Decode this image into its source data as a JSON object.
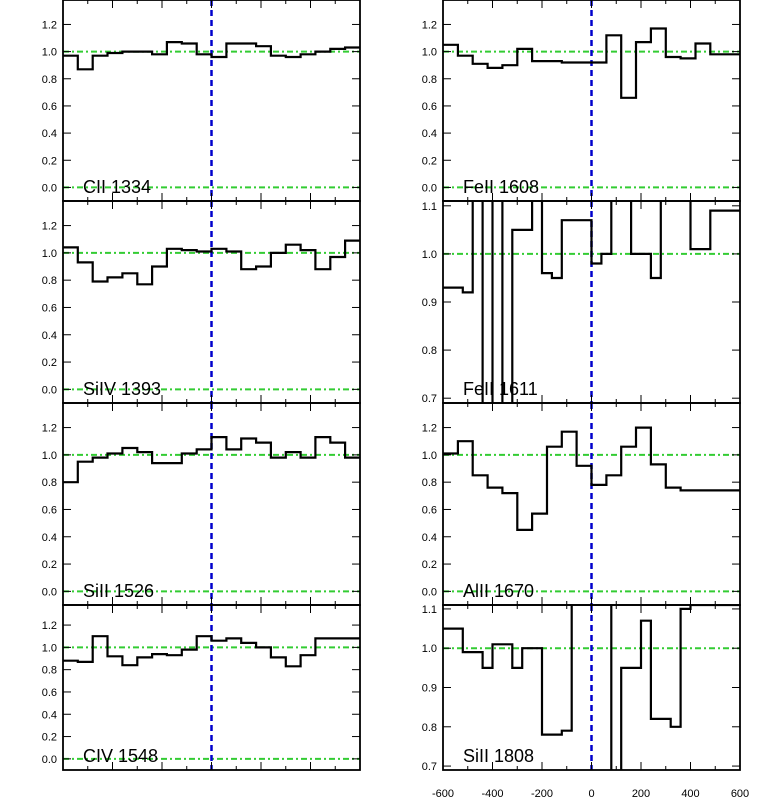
{
  "chart_data": [
    {
      "type": "line",
      "step": true,
      "label": "CII 1334",
      "xlim": [
        -600,
        600
      ],
      "ylim": [
        -0.1,
        1.38
      ],
      "yticks": [
        "0.0",
        "0.2",
        "0.4",
        "0.6",
        "0.8",
        "1.0",
        "1.2"
      ],
      "ytick_values": [
        0.0,
        0.2,
        0.4,
        0.6,
        0.8,
        1.0,
        1.2
      ],
      "xticks": [],
      "reference_lines": [
        0.0,
        1.0
      ],
      "vline": 0,
      "x": [
        -600,
        -540,
        -480,
        -420,
        -360,
        -300,
        -240,
        -180,
        -120,
        -60,
        0,
        60,
        120,
        180,
        240,
        300,
        360,
        420,
        480,
        540,
        600
      ],
      "values": [
        0.97,
        0.87,
        0.97,
        0.99,
        1.0,
        1.0,
        0.98,
        1.07,
        1.06,
        0.98,
        0.96,
        1.06,
        1.06,
        1.04,
        0.97,
        0.96,
        0.98,
        1.0,
        1.02,
        1.03,
        0.9
      ]
    },
    {
      "type": "line",
      "step": true,
      "label": "FeII 1608",
      "xlim": [
        -600,
        600
      ],
      "ylim": [
        -0.1,
        1.38
      ],
      "yticks": [
        "0.0",
        "0.2",
        "0.4",
        "0.6",
        "0.8",
        "1.0",
        "1.2"
      ],
      "ytick_values": [
        0.0,
        0.2,
        0.4,
        0.6,
        0.8,
        1.0,
        1.2
      ],
      "xticks": [],
      "reference_lines": [
        0.0,
        1.0
      ],
      "vline": 0,
      "x": [
        -600,
        -540,
        -480,
        -420,
        -360,
        -300,
        -240,
        -180,
        -120,
        -60,
        0,
        60,
        120,
        180,
        240,
        300,
        360,
        420,
        480,
        540,
        600
      ],
      "values": [
        1.05,
        0.97,
        0.91,
        0.88,
        0.9,
        1.02,
        0.93,
        0.93,
        0.92,
        0.92,
        0.92,
        1.12,
        0.66,
        1.07,
        1.17,
        0.96,
        0.95,
        1.06,
        0.98,
        0.98,
        0.98
      ]
    },
    {
      "type": "line",
      "step": true,
      "label": "SiIV 1393",
      "xlim": [
        -600,
        600
      ],
      "ylim": [
        -0.1,
        1.38
      ],
      "yticks": [
        "0.0",
        "0.2",
        "0.4",
        "0.6",
        "0.8",
        "1.0",
        "1.2"
      ],
      "ytick_values": [
        0.0,
        0.2,
        0.4,
        0.6,
        0.8,
        1.0,
        1.2
      ],
      "xticks": [],
      "reference_lines": [
        0.0,
        1.0
      ],
      "vline": 0,
      "x": [
        -600,
        -540,
        -480,
        -420,
        -360,
        -300,
        -240,
        -180,
        -120,
        -60,
        0,
        60,
        120,
        180,
        240,
        300,
        360,
        420,
        480,
        540,
        600
      ],
      "values": [
        1.04,
        0.93,
        0.79,
        0.82,
        0.85,
        0.77,
        0.9,
        1.03,
        1.02,
        1.01,
        1.03,
        1.01,
        0.88,
        0.9,
        1.0,
        1.06,
        1.02,
        0.88,
        0.97,
        1.09,
        1.05
      ]
    },
    {
      "type": "line",
      "step": true,
      "label": "FeII 1611",
      "xlim": [
        -600,
        600
      ],
      "ylim": [
        0.69,
        1.11
      ],
      "yticks": [
        "0.7",
        "0.8",
        "0.9",
        "1.0",
        "1.1"
      ],
      "ytick_values": [
        0.7,
        0.8,
        0.9,
        1.0,
        1.1
      ],
      "xticks": [],
      "reference_lines": [
        1.0
      ],
      "vline": 0,
      "x": [
        -600,
        -560,
        -520,
        -480,
        -440,
        -400,
        -360,
        -320,
        -280,
        -240,
        -200,
        -160,
        -120,
        -80,
        -40,
        0,
        40,
        80,
        120,
        160,
        200,
        240,
        280,
        320,
        360,
        400,
        440,
        480,
        520,
        560,
        600
      ],
      "values": [
        0.93,
        0.93,
        0.92,
        1.15,
        0.5,
        1.15,
        0.5,
        1.05,
        1.05,
        1.15,
        0.96,
        0.95,
        1.07,
        1.07,
        1.07,
        0.98,
        1.0,
        1.15,
        1.15,
        1.0,
        1.0,
        0.95,
        1.15,
        1.15,
        1.15,
        1.01,
        1.01,
        1.09,
        1.09,
        1.09,
        1.09
      ]
    },
    {
      "type": "line",
      "step": true,
      "label": "SiII 1526",
      "xlim": [
        -600,
        600
      ],
      "ylim": [
        -0.1,
        1.38
      ],
      "yticks": [
        "0.0",
        "0.2",
        "0.4",
        "0.6",
        "0.8",
        "1.0",
        "1.2"
      ],
      "ytick_values": [
        0.0,
        0.2,
        0.4,
        0.6,
        0.8,
        1.0,
        1.2
      ],
      "xticks": [],
      "reference_lines": [
        0.0,
        1.0
      ],
      "vline": 0,
      "x": [
        -600,
        -540,
        -480,
        -420,
        -360,
        -300,
        -240,
        -180,
        -120,
        -60,
        0,
        60,
        120,
        180,
        240,
        300,
        360,
        420,
        480,
        540,
        600
      ],
      "values": [
        0.8,
        0.95,
        0.98,
        1.01,
        1.05,
        1.02,
        0.94,
        0.94,
        1.01,
        1.04,
        1.13,
        1.04,
        1.12,
        1.09,
        0.98,
        1.02,
        0.98,
        1.13,
        1.09,
        0.98,
        1.02
      ]
    },
    {
      "type": "line",
      "step": true,
      "label": "AlII 1670",
      "xlim": [
        -600,
        600
      ],
      "ylim": [
        -0.1,
        1.38
      ],
      "yticks": [
        "0.0",
        "0.2",
        "0.4",
        "0.6",
        "0.8",
        "1.0",
        "1.2"
      ],
      "ytick_values": [
        0.0,
        0.2,
        0.4,
        0.6,
        0.8,
        1.0,
        1.2
      ],
      "xticks": [],
      "reference_lines": [
        0.0,
        1.0
      ],
      "vline": 0,
      "x": [
        -600,
        -540,
        -480,
        -420,
        -360,
        -300,
        -240,
        -180,
        -120,
        -60,
        0,
        60,
        120,
        180,
        240,
        300,
        360,
        420,
        480,
        540,
        600
      ],
      "values": [
        1.01,
        1.1,
        0.85,
        0.76,
        0.72,
        0.45,
        0.57,
        1.06,
        1.17,
        0.92,
        0.78,
        0.85,
        1.06,
        1.2,
        0.93,
        0.76,
        0.74,
        0.74,
        0.74,
        0.74,
        0.74
      ]
    },
    {
      "type": "line",
      "step": true,
      "label": "CIV 1548",
      "xlim": [
        -600,
        600
      ],
      "ylim": [
        -0.1,
        1.38
      ],
      "yticks": [
        "0.0",
        "0.2",
        "0.4",
        "0.6",
        "0.8",
        "1.0",
        "1.2"
      ],
      "ytick_values": [
        0.0,
        0.2,
        0.4,
        0.6,
        0.8,
        1.0,
        1.2
      ],
      "xticks": [],
      "reference_lines": [
        0.0,
        1.0
      ],
      "vline": 0,
      "x": [
        -600,
        -540,
        -480,
        -420,
        -360,
        -300,
        -240,
        -180,
        -120,
        -60,
        0,
        60,
        120,
        180,
        240,
        300,
        360,
        420,
        480,
        540,
        600
      ],
      "values": [
        0.88,
        0.87,
        1.1,
        0.92,
        0.84,
        0.91,
        0.94,
        0.93,
        0.98,
        1.1,
        1.06,
        1.08,
        1.04,
        1.0,
        0.91,
        0.83,
        0.93,
        1.08,
        1.08,
        1.08,
        1.08
      ]
    },
    {
      "type": "line",
      "step": true,
      "label": "SiII 1808",
      "xlim": [
        -600,
        600
      ],
      "ylim": [
        0.69,
        1.11
      ],
      "yticks": [
        "0.7",
        "0.8",
        "0.9",
        "1.0",
        "1.1"
      ],
      "ytick_values": [
        0.7,
        0.8,
        0.9,
        1.0,
        1.1
      ],
      "xticks": [
        "-600",
        "-400",
        "-200",
        "0",
        "200",
        "400",
        "600"
      ],
      "reference_lines": [
        1.0
      ],
      "vline": 0,
      "x": [
        -600,
        -560,
        -520,
        -480,
        -440,
        -400,
        -360,
        -320,
        -280,
        -240,
        -200,
        -160,
        -120,
        -80,
        -40,
        0,
        40,
        80,
        120,
        160,
        200,
        240,
        280,
        320,
        360,
        400,
        440,
        480,
        520,
        560,
        600
      ],
      "values": [
        1.05,
        1.05,
        0.99,
        0.99,
        0.95,
        1.01,
        1.01,
        0.95,
        1.0,
        1.0,
        0.78,
        0.78,
        0.79,
        1.15,
        1.15,
        1.15,
        1.15,
        0.5,
        0.95,
        0.95,
        1.07,
        0.82,
        0.82,
        0.8,
        1.1,
        1.11,
        1.11,
        1.11,
        1.11,
        1.11,
        1.11
      ]
    }
  ],
  "colors": {
    "data_line": "#000000",
    "reference_line": "#33cc33",
    "zero_velocity_line": "#0000cc",
    "axes": "#000000"
  }
}
